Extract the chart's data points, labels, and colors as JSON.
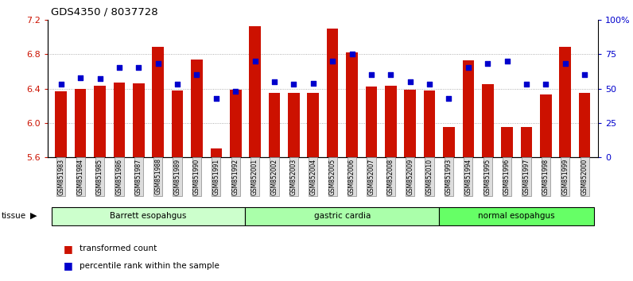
{
  "title": "GDS4350 / 8037728",
  "samples": [
    "GSM851983",
    "GSM851984",
    "GSM851985",
    "GSM851986",
    "GSM851987",
    "GSM851988",
    "GSM851989",
    "GSM851990",
    "GSM851991",
    "GSM851992",
    "GSM852001",
    "GSM852002",
    "GSM852003",
    "GSM852004",
    "GSM852005",
    "GSM852006",
    "GSM852007",
    "GSM852008",
    "GSM852009",
    "GSM852010",
    "GSM851993",
    "GSM851994",
    "GSM851995",
    "GSM851996",
    "GSM851997",
    "GSM851998",
    "GSM851999",
    "GSM852000"
  ],
  "red_values": [
    6.37,
    6.4,
    6.43,
    6.47,
    6.46,
    6.88,
    6.38,
    6.74,
    5.7,
    6.39,
    7.12,
    6.35,
    6.35,
    6.35,
    7.1,
    6.82,
    6.42,
    6.43,
    6.39,
    6.38,
    5.95,
    6.73,
    6.45,
    5.95,
    5.95,
    6.33,
    6.88,
    6.35
  ],
  "blue_values": [
    53,
    58,
    57,
    65,
    65,
    68,
    53,
    60,
    43,
    48,
    70,
    55,
    53,
    54,
    70,
    75,
    60,
    60,
    55,
    53,
    43,
    65,
    68,
    70,
    53,
    53,
    68,
    60
  ],
  "groups": [
    {
      "label": "Barrett esopahgus",
      "start": 0,
      "end": 10,
      "color": "#ccffcc"
    },
    {
      "label": "gastric cardia",
      "start": 10,
      "end": 20,
      "color": "#aaffaa"
    },
    {
      "label": "normal esopahgus",
      "start": 20,
      "end": 28,
      "color": "#66ff66"
    }
  ],
  "ylim_left": [
    5.6,
    7.2
  ],
  "ylim_right": [
    0,
    100
  ],
  "yticks_left": [
    5.6,
    6.0,
    6.4,
    6.8,
    7.2
  ],
  "yticks_right": [
    0,
    25,
    50,
    75,
    100
  ],
  "bar_color": "#cc1100",
  "dot_color": "#0000cc",
  "grid_color": "#999999",
  "tick_label_color_left": "#cc1100",
  "tick_label_color_right": "#0000cc",
  "legend_items": [
    "transformed count",
    "percentile rank within the sample"
  ]
}
